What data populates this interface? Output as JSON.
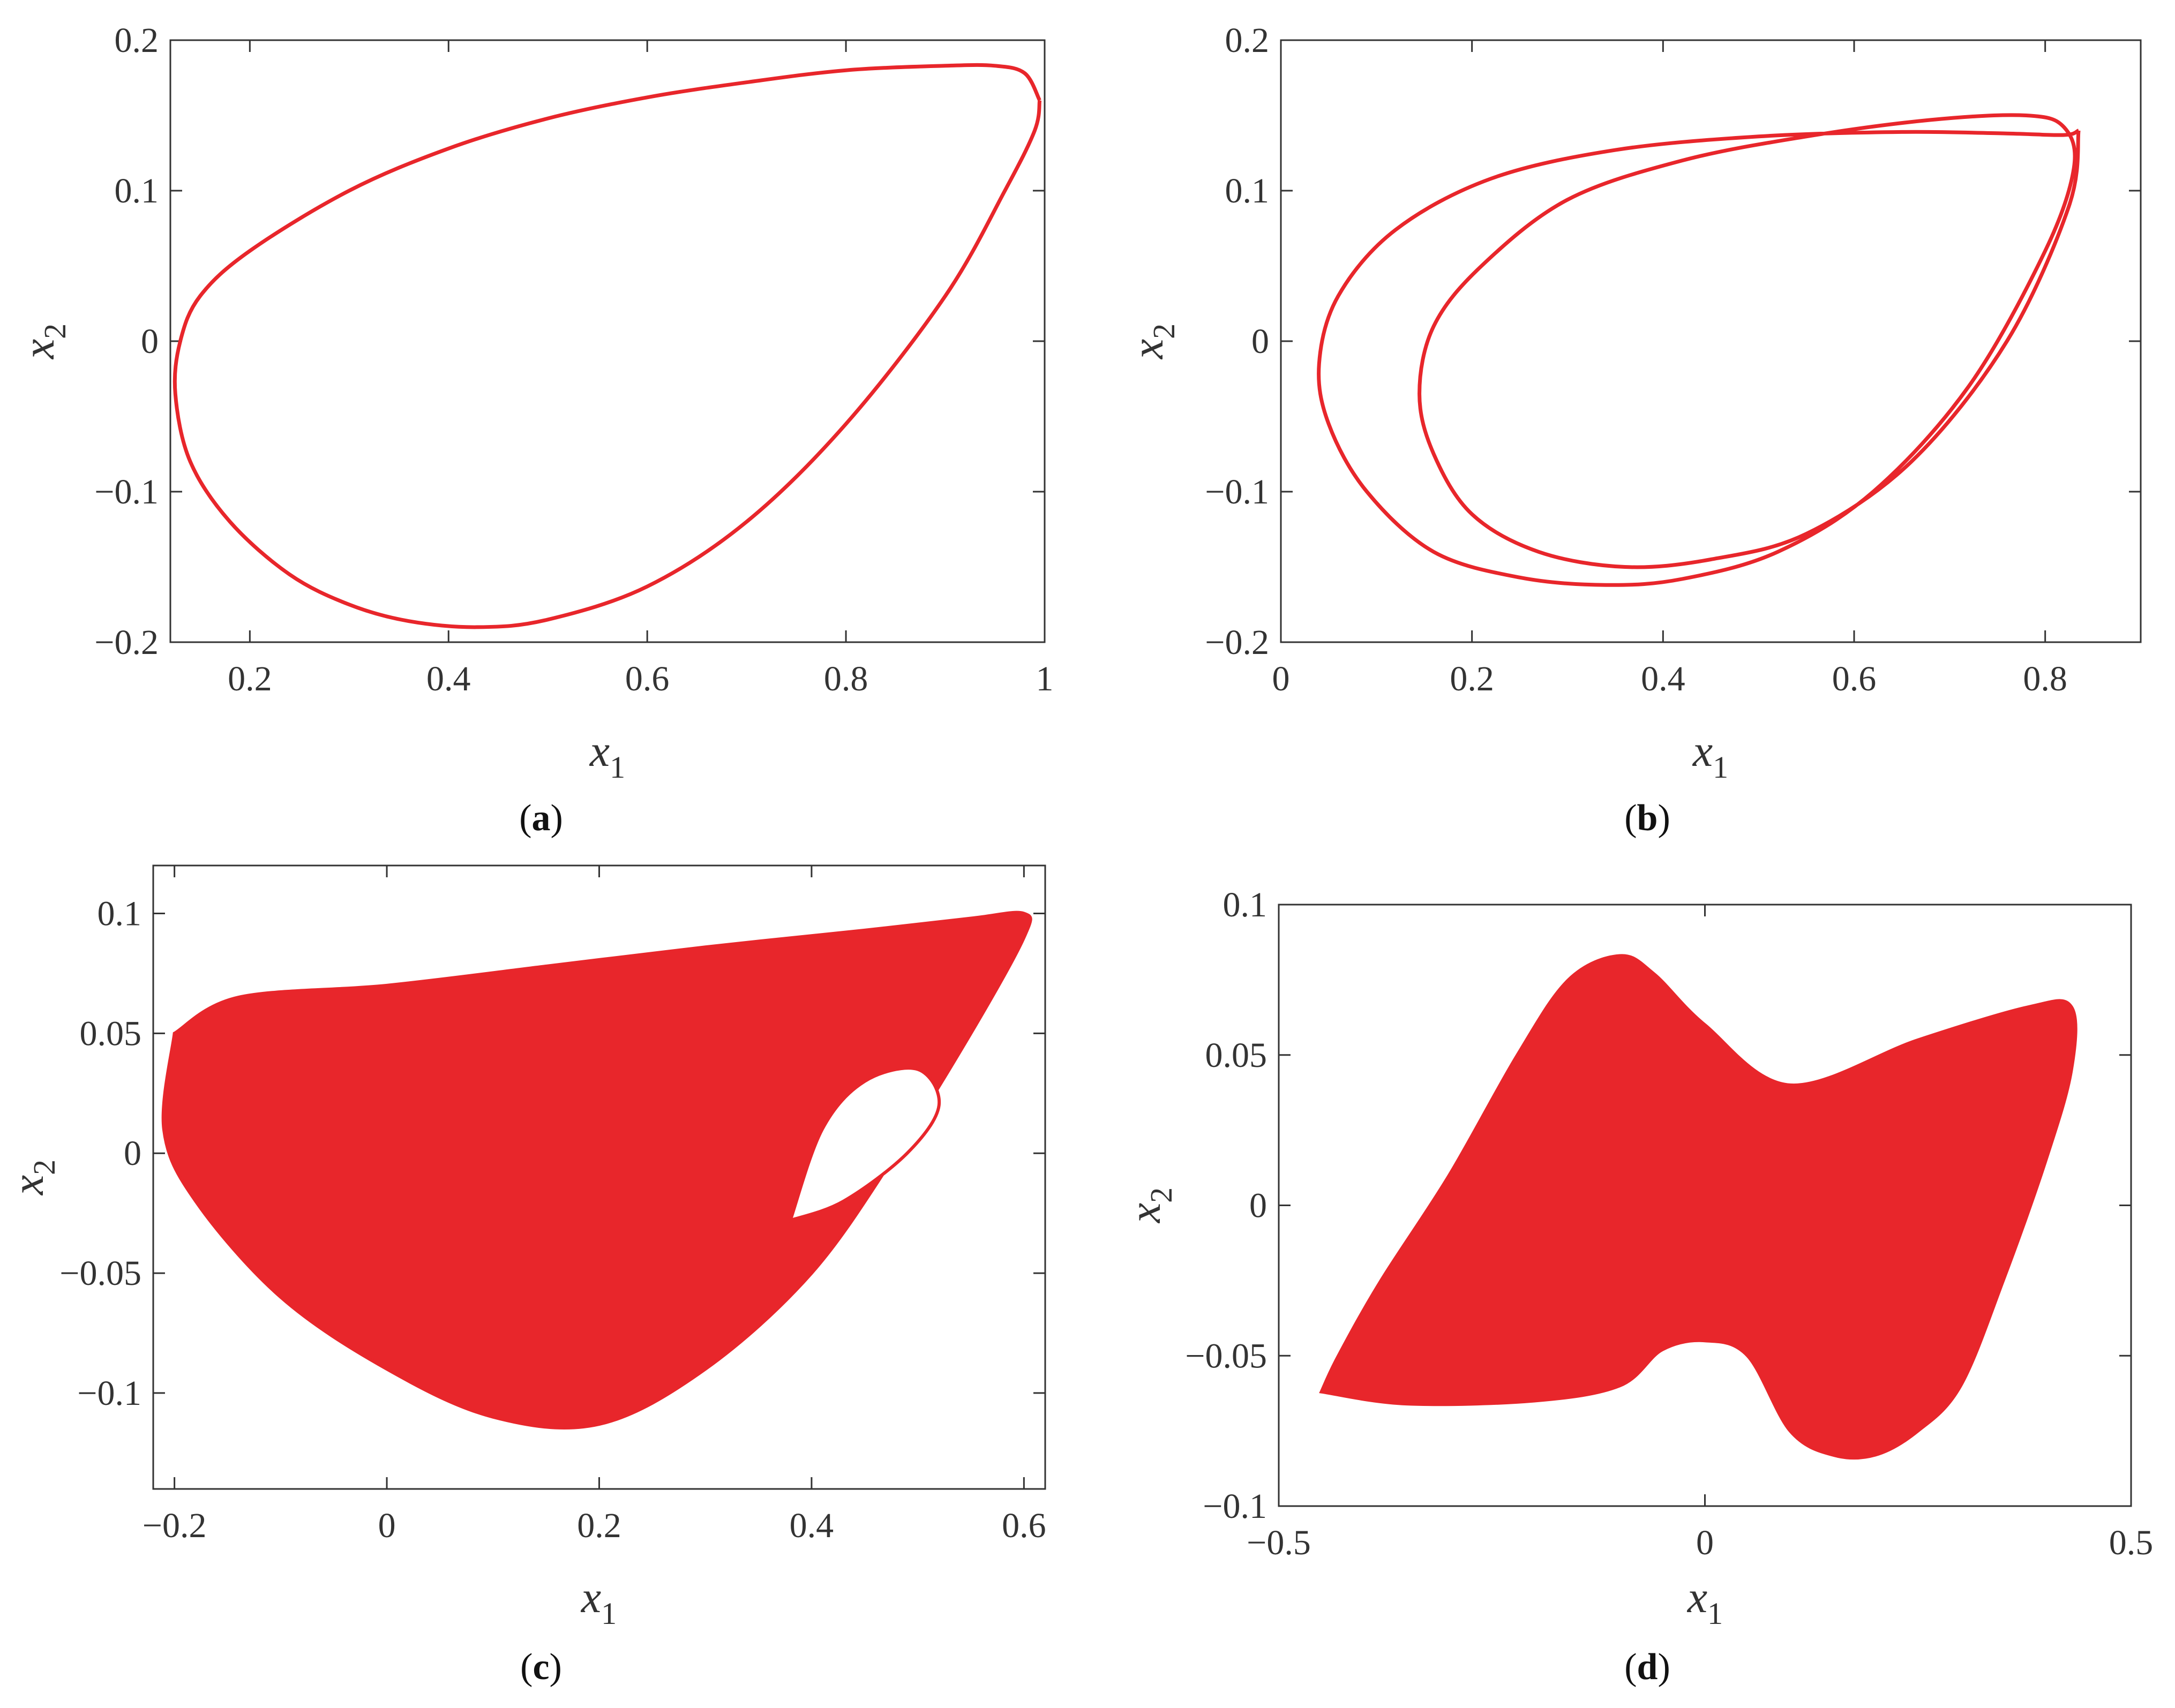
{
  "line_color": "#e8262b",
  "chart_data": [
    {
      "id": "a",
      "type": "line",
      "caption_letter": "a",
      "xlabel": "x",
      "xlabel_sub": "1",
      "ylabel": "x",
      "ylabel_sub": "2",
      "xlim": [
        0.12,
        1.0
      ],
      "ylim": [
        -0.2,
        0.2
      ],
      "xticks": [
        0.2,
        0.4,
        0.6,
        0.8,
        1
      ],
      "xtick_labels": [
        "0.2",
        "0.4",
        "0.6",
        "0.8",
        "1"
      ],
      "yticks": [
        -0.2,
        -0.1,
        0,
        0.1,
        0.2
      ],
      "ytick_labels": [
        "−0.2",
        "−0.1",
        "0",
        "0.1",
        "0.2"
      ],
      "trajectory": "period-1 limit cycle",
      "series": [
        {
          "x": [
            0.995,
            0.98,
            0.95,
            0.9,
            0.8,
            0.7,
            0.6,
            0.5,
            0.4,
            0.3,
            0.2,
            0.15,
            0.13,
            0.125,
            0.14,
            0.18,
            0.24,
            0.3,
            0.36,
            0.43,
            0.5,
            0.6,
            0.7,
            0.8,
            0.9,
            0.96,
            0.99,
            0.995
          ],
          "y": [
            0.16,
            0.178,
            0.183,
            0.183,
            0.18,
            0.172,
            0.162,
            0.148,
            0.128,
            0.1,
            0.06,
            0.03,
            0.0,
            -0.035,
            -0.08,
            -0.12,
            -0.155,
            -0.175,
            -0.186,
            -0.19,
            -0.185,
            -0.163,
            -0.12,
            -0.055,
            0.03,
            0.1,
            0.14,
            0.16
          ]
        }
      ]
    },
    {
      "id": "b",
      "type": "line",
      "caption_letter": "b",
      "xlabel": "x",
      "xlabel_sub": "1",
      "ylabel": "x",
      "ylabel_sub": "2",
      "xlim": [
        0,
        0.9
      ],
      "ylim": [
        -0.2,
        0.2
      ],
      "xticks": [
        0,
        0.2,
        0.4,
        0.6,
        0.8
      ],
      "xtick_labels": [
        "0",
        "0.2",
        "0.4",
        "0.6",
        "0.8"
      ],
      "yticks": [
        -0.2,
        -0.1,
        0,
        0.1,
        0.2
      ],
      "ytick_labels": [
        "−0.2",
        "−0.1",
        "0",
        "0.1",
        "0.2"
      ],
      "trajectory": "period-2 limit cycle",
      "series": [
        {
          "x": [
            0.835,
            0.82,
            0.76,
            0.65,
            0.5,
            0.35,
            0.22,
            0.12,
            0.06,
            0.04,
            0.05,
            0.09,
            0.16,
            0.25,
            0.34,
            0.42,
            0.52,
            0.62,
            0.72,
            0.8,
            0.83,
            0.82,
            0.78,
            0.68,
            0.55,
            0.42,
            0.3,
            0.21,
            0.16,
            0.145,
            0.16,
            0.2,
            0.27,
            0.36,
            0.45,
            0.55,
            0.66,
            0.76,
            0.825,
            0.835
          ],
          "y": [
            0.14,
            0.137,
            0.138,
            0.139,
            0.136,
            0.127,
            0.108,
            0.074,
            0.03,
            -0.015,
            -0.055,
            -0.1,
            -0.14,
            -0.157,
            -0.162,
            -0.158,
            -0.14,
            -0.1,
            -0.03,
            0.06,
            0.115,
            0.142,
            0.15,
            0.147,
            0.136,
            0.12,
            0.094,
            0.05,
            0.01,
            -0.035,
            -0.075,
            -0.115,
            -0.14,
            -0.15,
            -0.145,
            -0.128,
            -0.08,
            0.0,
            0.09,
            0.14
          ]
        }
      ]
    },
    {
      "id": "c",
      "type": "line",
      "caption_letter": "c",
      "xlabel": "x",
      "xlabel_sub": "1",
      "ylabel": "x",
      "ylabel_sub": "2",
      "xlim": [
        -0.22,
        0.62
      ],
      "ylim": [
        -0.14,
        0.12
      ],
      "xticks": [
        -0.2,
        0,
        0.2,
        0.4,
        0.6
      ],
      "xtick_labels": [
        "−0.2",
        "0",
        "0.2",
        "0.4",
        "0.6"
      ],
      "yticks": [
        -0.1,
        -0.05,
        0,
        0.05,
        0.1
      ],
      "ytick_labels": [
        "−0.1",
        "−0.05",
        "0",
        "0.05",
        "0.1"
      ],
      "trajectory": "chaotic attractor (single scroll)",
      "envelope": {
        "x": [
          -0.2,
          -0.14,
          0.0,
          0.15,
          0.3,
          0.45,
          0.55,
          0.6,
          0.6,
          0.55,
          0.48,
          0.4,
          0.3,
          0.2,
          0.1,
          0.0,
          -0.1,
          -0.18,
          -0.21,
          -0.2
        ],
        "y": [
          0.05,
          0.065,
          0.07,
          0.078,
          0.086,
          0.093,
          0.098,
          0.1,
          0.09,
          0.05,
          0.0,
          -0.05,
          -0.09,
          -0.113,
          -0.11,
          -0.09,
          -0.06,
          -0.02,
          0.01,
          0.05
        ]
      },
      "hole": {
        "x": [
          0.38,
          0.43,
          0.49,
          0.52,
          0.5,
          0.45,
          0.41,
          0.38
        ],
        "y": [
          -0.028,
          -0.02,
          0.0,
          0.02,
          0.035,
          0.03,
          0.01,
          -0.028
        ]
      }
    },
    {
      "id": "d",
      "type": "line",
      "caption_letter": "d",
      "xlabel": "x",
      "xlabel_sub": "1",
      "ylabel": "x",
      "ylabel_sub": "2",
      "xlim": [
        -0.5,
        0.5
      ],
      "ylim": [
        -0.1,
        0.1
      ],
      "xticks": [
        -0.5,
        0,
        0.5
      ],
      "xtick_labels": [
        "−0.5",
        "0",
        "0.5"
      ],
      "yticks": [
        -0.1,
        -0.05,
        0,
        0.05,
        0.1
      ],
      "ytick_labels": [
        "−0.1",
        "−0.05",
        "0",
        "0.05",
        "0.1"
      ],
      "trajectory": "chaotic attractor (double scroll)",
      "envelope": {
        "x": [
          -0.45,
          -0.43,
          -0.38,
          -0.3,
          -0.22,
          -0.16,
          -0.1,
          -0.06,
          0.0,
          0.1,
          0.25,
          0.38,
          0.43,
          0.43,
          0.4,
          0.35,
          0.3,
          0.25,
          0.2,
          0.15,
          0.1,
          0.05,
          0.0,
          -0.05,
          -0.1,
          -0.2,
          -0.35,
          -0.45
        ],
        "y": [
          -0.062,
          -0.05,
          -0.025,
          0.01,
          0.05,
          0.075,
          0.083,
          0.077,
          0.06,
          0.04,
          0.055,
          0.066,
          0.066,
          0.045,
          0.015,
          -0.025,
          -0.06,
          -0.075,
          -0.083,
          -0.083,
          -0.075,
          -0.05,
          -0.045,
          -0.048,
          -0.06,
          -0.065,
          -0.066,
          -0.062
        ]
      }
    }
  ]
}
